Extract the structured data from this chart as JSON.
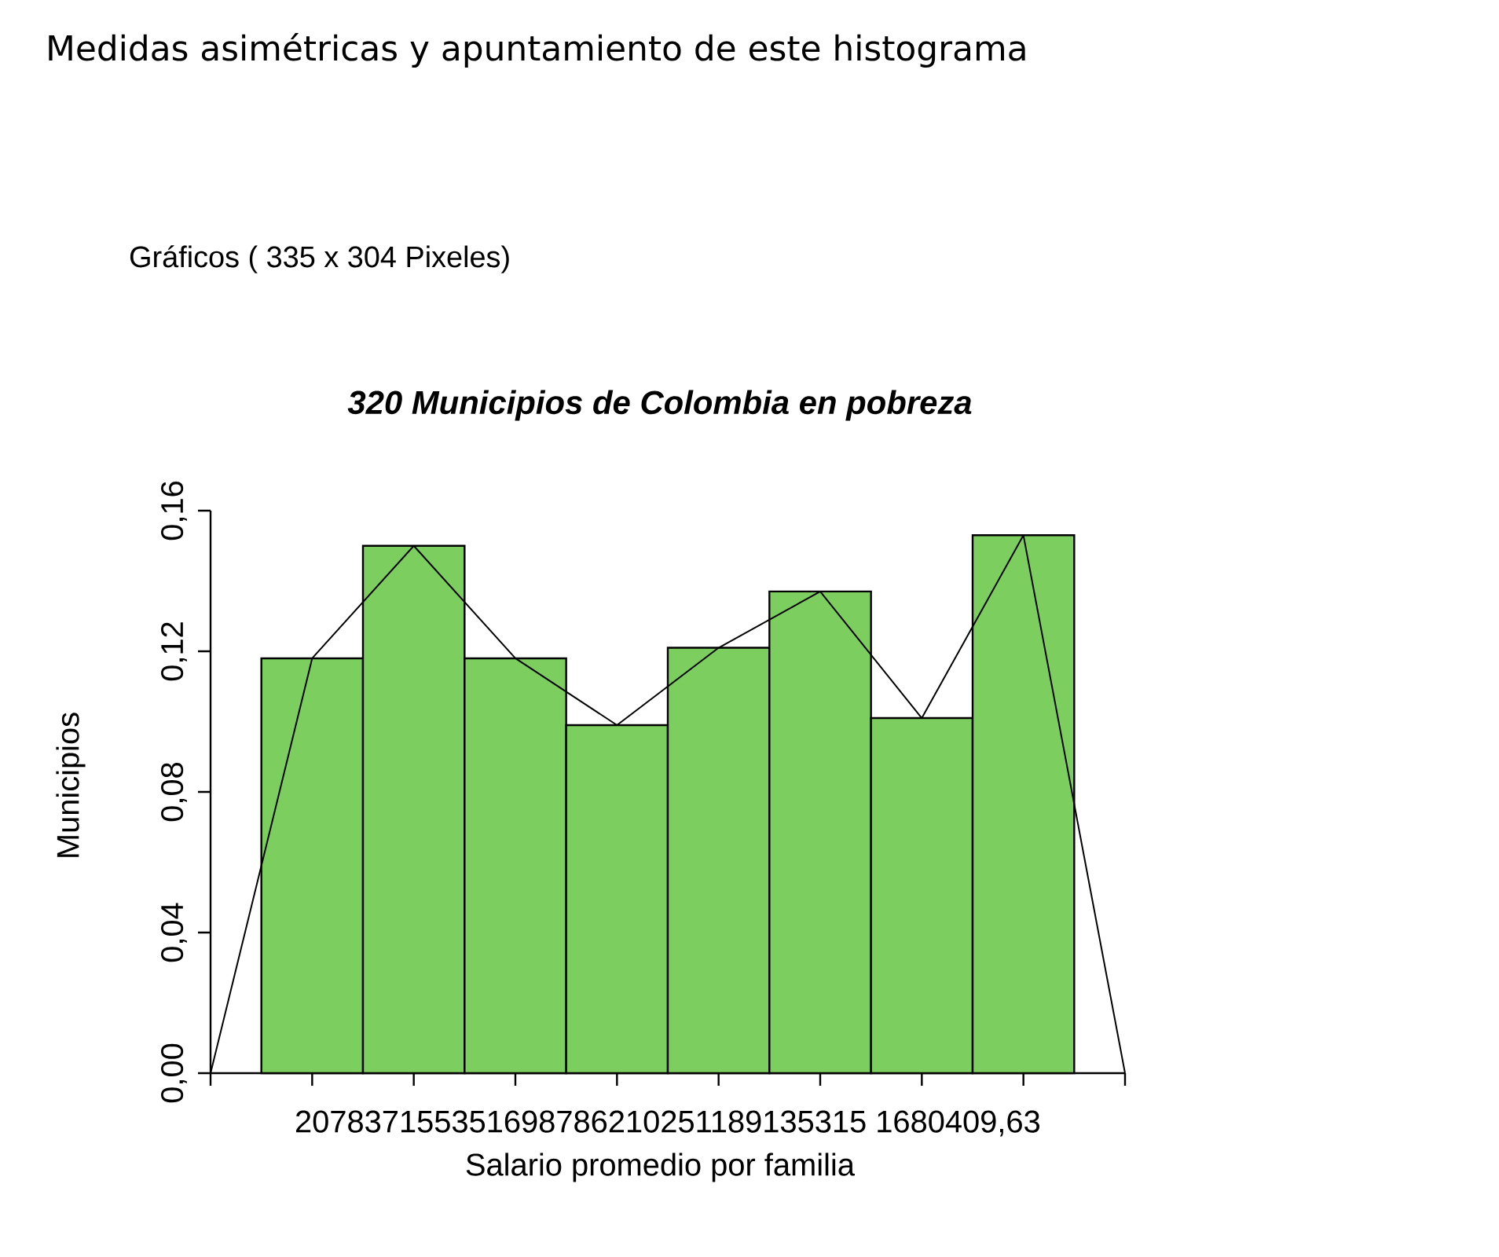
{
  "chart_data": {
    "type": "bar",
    "title": "320 Municipios de Colombia en pobreza",
    "xlabel": "Salario promedio por familia",
    "ylabel": "Municipios",
    "annotations": [
      "Medidas asimétricas y apuntamiento de este histograma",
      "Gráficos ( 335 x 304 Pixeles)",
      "207837155351698786210251189135315 1680409,63"
    ],
    "categories": [
      null,
      null,
      null,
      null,
      null,
      null,
      null,
      null,
      null,
      null
    ],
    "series": [
      {
        "color": "#7ccf5f",
        "values": [
          null,
          0.118,
          0.15,
          0.118,
          0.099,
          0.121,
          0.137,
          0.101,
          0.153,
          null
        ]
      },
      {
        "type": "line",
        "color": "#000000",
        "values": [
          0,
          0.118,
          0.15,
          0.118,
          0.099,
          0.121,
          0.137,
          0.101,
          0.153,
          0
        ]
      }
    ],
    "ylim": [
      0,
      0.16
    ],
    "yticks": [
      {
        "value": 0,
        "label": "0,00"
      },
      {
        "value": 0.04,
        "label": "0,04"
      },
      {
        "value": 0.08,
        "label": "0,08"
      },
      {
        "value": 0.12,
        "label": "0,12"
      },
      {
        "value": 0.16,
        "label": "0,16"
      }
    ],
    "tick_labels": "y",
    "grid": false
  }
}
